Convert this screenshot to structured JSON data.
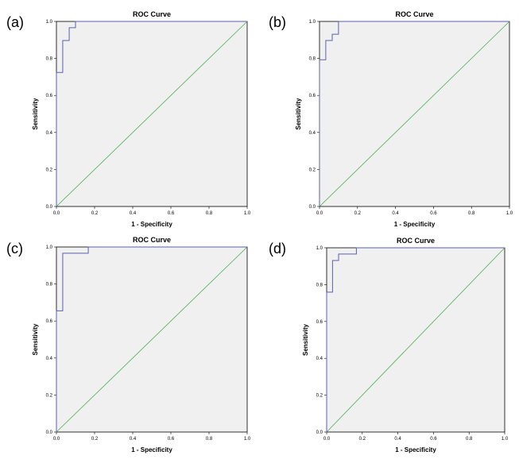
{
  "chart_data": [
    {
      "id": "a",
      "panel_label": "(a)",
      "type": "line",
      "title": "ROC Curve",
      "xlabel": "1 - Specificity",
      "ylabel": "Sensitivity",
      "xlim": [
        0,
        1
      ],
      "ylim": [
        0,
        1
      ],
      "xticks": [
        "0.0",
        "0.2",
        "0.4",
        "0.6",
        "0.8",
        "1.0"
      ],
      "yticks": [
        "0.0",
        "0.2",
        "0.4",
        "0.6",
        "0.8",
        "1.0"
      ],
      "series": [
        {
          "color": "#5b5fb0",
          "x": [
            0.0,
            0.0,
            0.033,
            0.033,
            0.067,
            0.067,
            0.1,
            0.1,
            1.0
          ],
          "y": [
            0.0,
            0.724,
            0.724,
            0.897,
            0.897,
            0.966,
            0.966,
            1.0,
            1.0
          ]
        },
        {
          "color": "#4caf50",
          "x": [
            0,
            1
          ],
          "y": [
            0,
            1
          ]
        }
      ]
    },
    {
      "id": "b",
      "panel_label": "(b)",
      "type": "line",
      "title": "ROC Curve",
      "xlabel": "1 - Specificity",
      "ylabel": "Sensitivity",
      "xlim": [
        0,
        1
      ],
      "ylim": [
        0,
        1
      ],
      "xticks": [
        "0.0",
        "0.2",
        "0.4",
        "0.6",
        "0.8",
        "1.0"
      ],
      "yticks": [
        "0.0",
        "0.2",
        "0.4",
        "0.6",
        "0.8",
        "1.0"
      ],
      "series": [
        {
          "color": "#5b5fb0",
          "x": [
            0.0,
            0.0,
            0.033,
            0.033,
            0.067,
            0.067,
            0.1,
            0.1,
            1.0
          ],
          "y": [
            0.0,
            0.793,
            0.793,
            0.897,
            0.897,
            0.931,
            0.931,
            1.0,
            1.0
          ]
        },
        {
          "color": "#4caf50",
          "x": [
            0,
            1
          ],
          "y": [
            0,
            1
          ]
        }
      ]
    },
    {
      "id": "c",
      "panel_label": "(c)",
      "type": "line",
      "title": "ROC Curve",
      "xlabel": "1 - Specificity",
      "ylabel": "Sensitivity",
      "xlim": [
        0,
        1
      ],
      "ylim": [
        0,
        1
      ],
      "xticks": [
        "0.0",
        "0.2",
        "0.4",
        "0.6",
        "0.8",
        "1.0"
      ],
      "yticks": [
        "0.0",
        "0.2",
        "0.4",
        "0.6",
        "0.8",
        "1.0"
      ],
      "series": [
        {
          "color": "#5b5fb0",
          "x": [
            0.0,
            0.0,
            0.033,
            0.033,
            0.167,
            0.167,
            1.0
          ],
          "y": [
            0.0,
            0.655,
            0.655,
            0.966,
            0.966,
            1.0,
            1.0
          ]
        },
        {
          "color": "#4caf50",
          "x": [
            0,
            1
          ],
          "y": [
            0,
            1
          ]
        }
      ]
    },
    {
      "id": "d",
      "panel_label": "(d)",
      "type": "line",
      "title": "ROC Curve",
      "xlabel": "1 - Specificity",
      "ylabel": "Sensitivity",
      "xlim": [
        0,
        1
      ],
      "ylim": [
        0,
        1
      ],
      "xticks": [
        "0.0",
        "0.2",
        "0.4",
        "0.6",
        "0.8",
        "1.0"
      ],
      "yticks": [
        "0.0",
        "0.2",
        "0.4",
        "0.6",
        "0.8",
        "1.0"
      ],
      "series": [
        {
          "color": "#5b5fb0",
          "x": [
            0.0,
            0.0,
            0.033,
            0.033,
            0.067,
            0.067,
            0.1,
            0.1,
            0.167,
            0.167,
            1.0
          ],
          "y": [
            0.0,
            0.759,
            0.759,
            0.931,
            0.931,
            0.966,
            0.966,
            0.966,
            0.966,
            1.0,
            1.0
          ]
        },
        {
          "color": "#4caf50",
          "x": [
            0,
            1
          ],
          "y": [
            0,
            1
          ]
        }
      ]
    }
  ]
}
